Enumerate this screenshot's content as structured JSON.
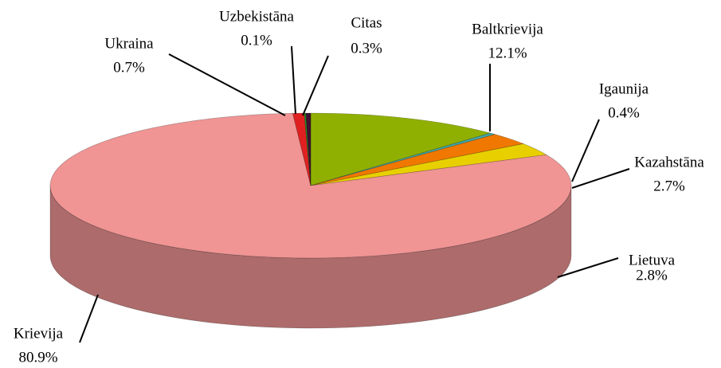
{
  "chart_data": {
    "type": "pie3d",
    "categories": [
      "Baltkrievija",
      "Igaunija",
      "Kazahstāna",
      "Lietuva",
      "Krievija",
      "Ukraina",
      "Uzbekistāna",
      "Citas"
    ],
    "values": [
      12.1,
      0.4,
      2.7,
      2.8,
      80.9,
      0.7,
      0.1,
      0.3
    ],
    "value_labels": [
      "12.1%",
      "0.4%",
      "2.7%",
      "2.8%",
      "80.9%",
      "0.7%",
      "0.1%",
      "0.3%"
    ],
    "colors": [
      "#8fb000",
      "#40a8a8",
      "#f07800",
      "#e8d000",
      "#f09494",
      "#e02020",
      "#209020",
      "#401030"
    ]
  }
}
